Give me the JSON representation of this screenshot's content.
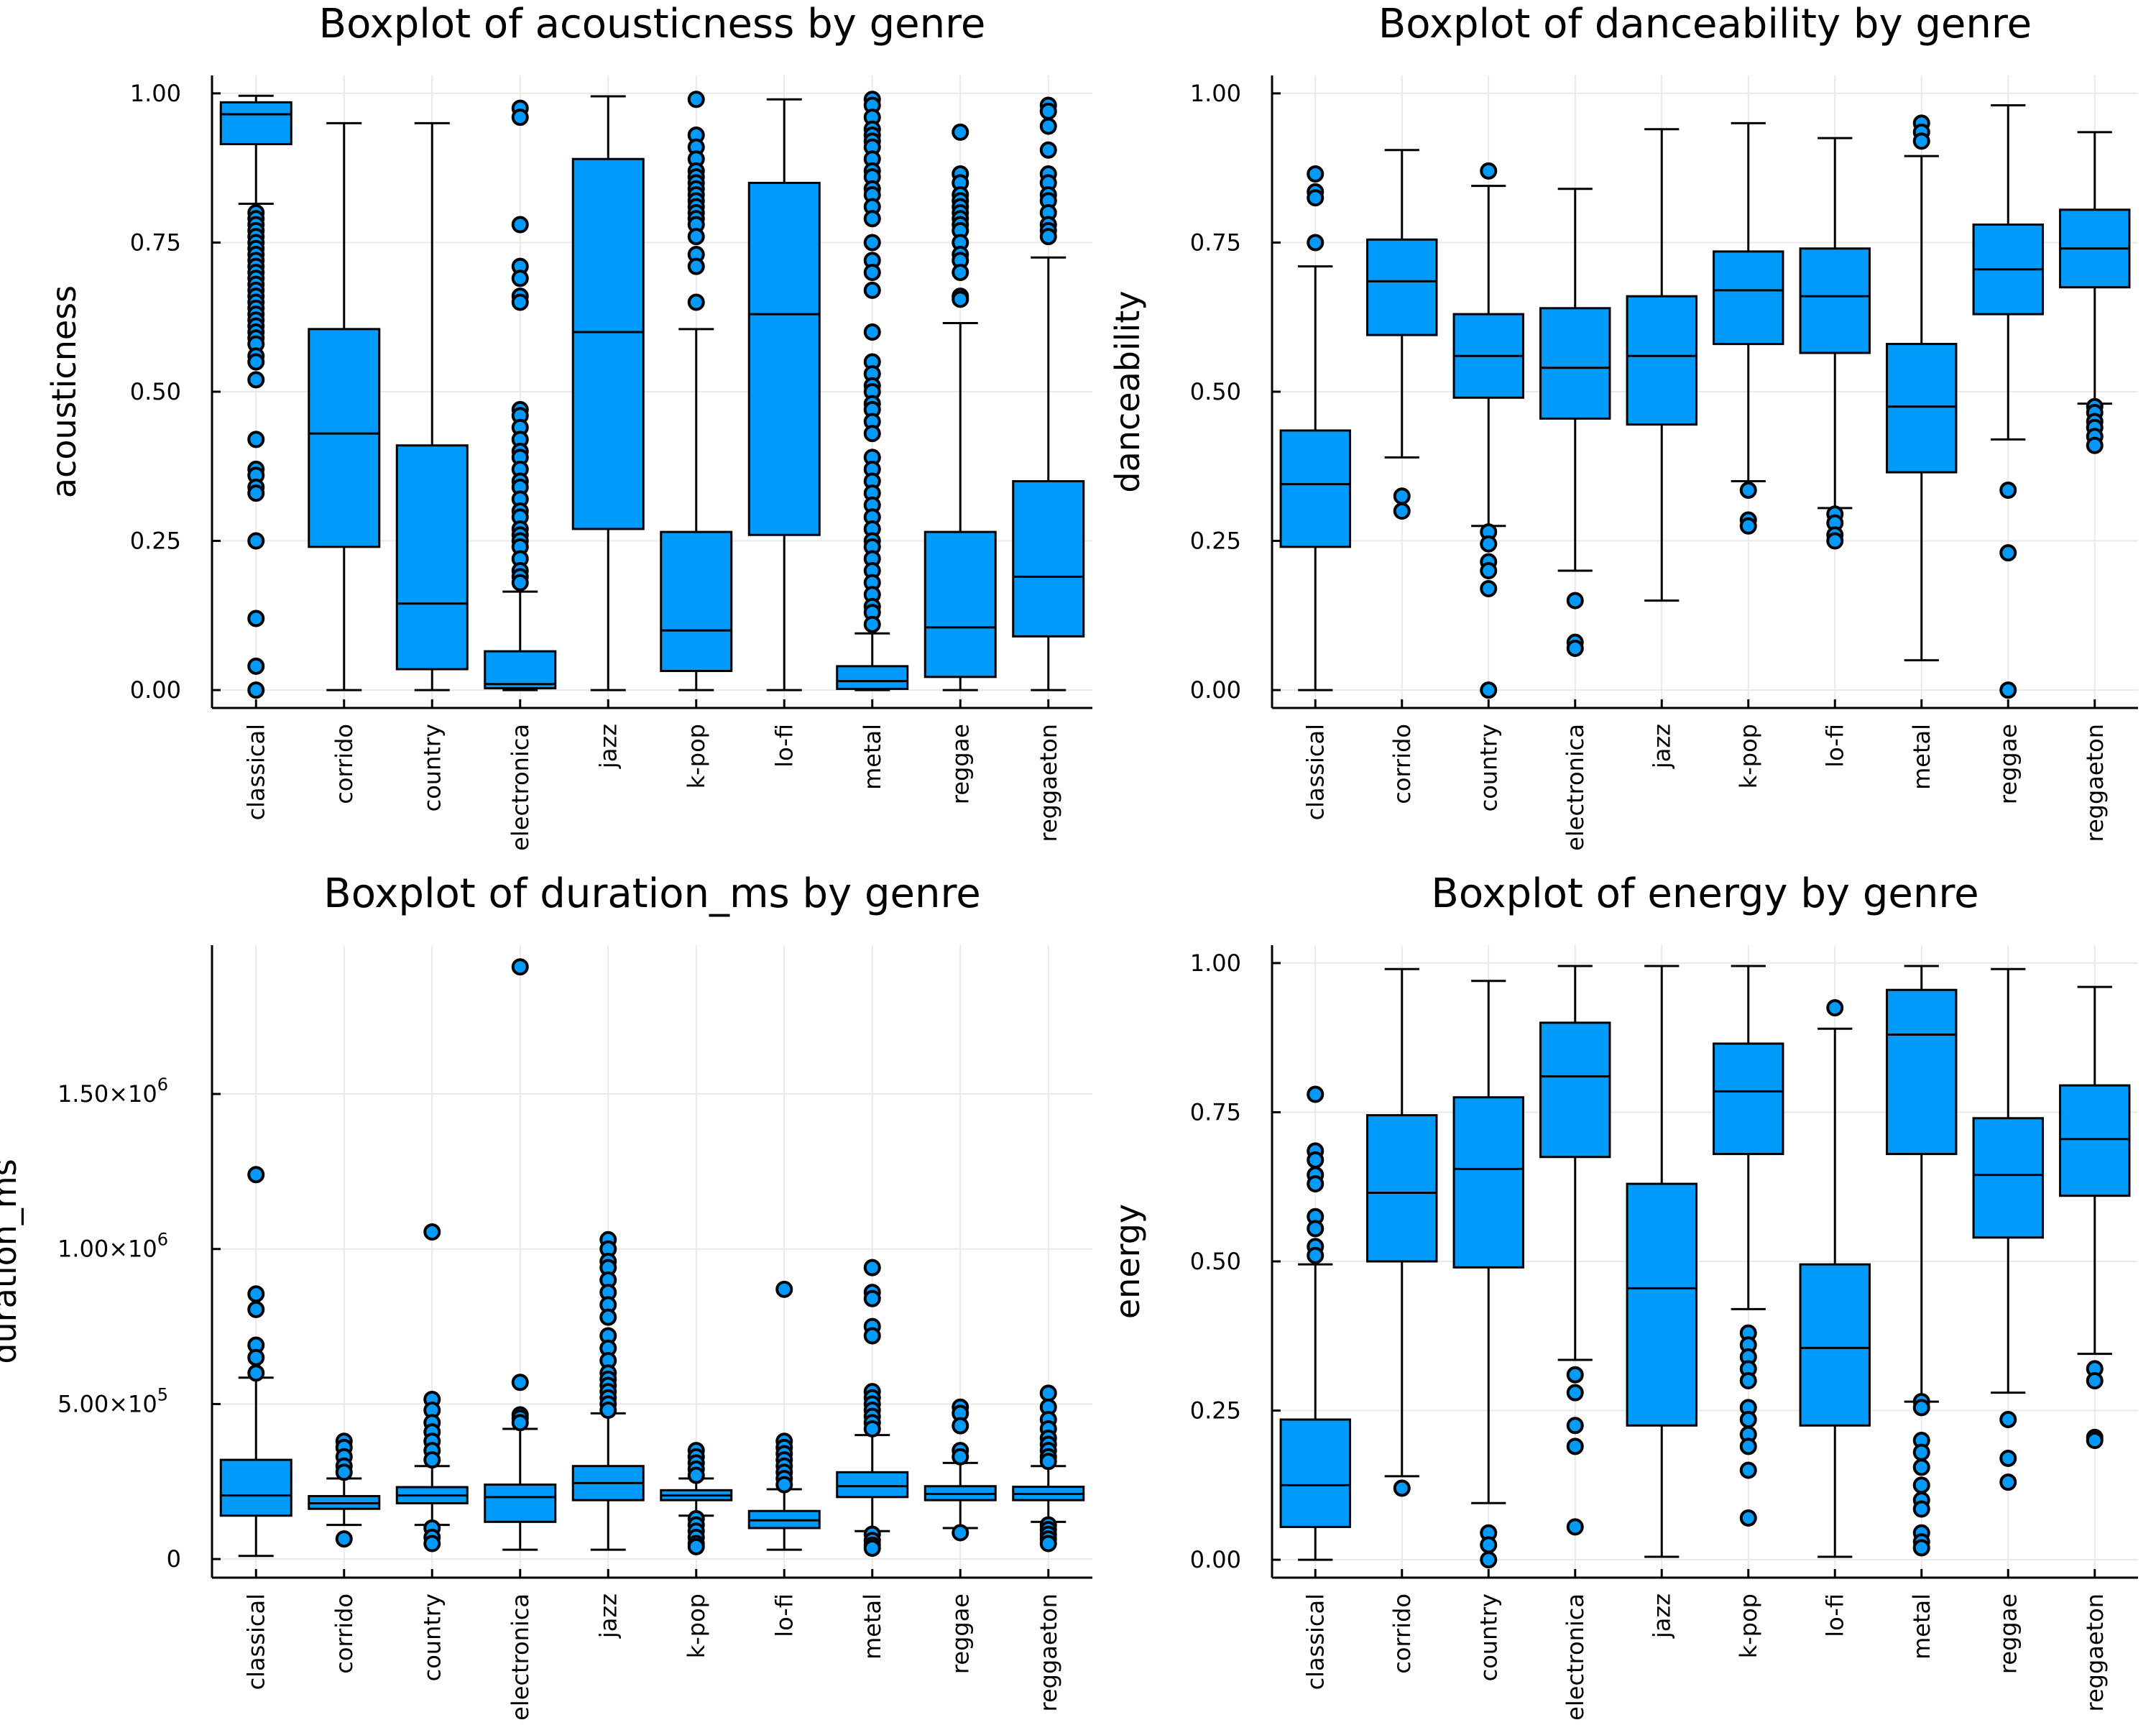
{
  "figure": {
    "fill_color": "#009AFA",
    "outline_color": "#000000"
  },
  "chart_data": [
    {
      "type": "box",
      "title": "Boxplot of acousticness by genre",
      "xlabel": "",
      "ylabel": "acousticness",
      "ylim": [
        -0.03,
        1.03
      ],
      "yticks": [
        0,
        0.25,
        0.5,
        0.75,
        1.0
      ],
      "ytick_labels": [
        "0.00",
        "0.25",
        "0.50",
        "0.75",
        "1.00"
      ],
      "categories": [
        "classical",
        "corrido",
        "country",
        "electronica",
        "jazz",
        "k-pop",
        "lo-fi",
        "metal",
        "reggae",
        "reggaeton"
      ],
      "boxes": [
        {
          "q1": 0.915,
          "median": 0.965,
          "q3": 0.985,
          "whisker_low": 0.815,
          "whisker_high": 0.996,
          "outliers": [
            0.8,
            0.79,
            0.78,
            0.77,
            0.76,
            0.75,
            0.74,
            0.73,
            0.72,
            0.71,
            0.7,
            0.69,
            0.68,
            0.67,
            0.66,
            0.65,
            0.64,
            0.63,
            0.62,
            0.61,
            0.6,
            0.59,
            0.58,
            0.56,
            0.55,
            0.52,
            0.42,
            0.37,
            0.36,
            0.34,
            0.33,
            0.25,
            0.12,
            0.04,
            0.0
          ]
        },
        {
          "q1": 0.24,
          "median": 0.43,
          "q3": 0.605,
          "whisker_low": 0.0,
          "whisker_high": 0.95,
          "outliers": []
        },
        {
          "q1": 0.035,
          "median": 0.145,
          "q3": 0.41,
          "whisker_low": 0.0,
          "whisker_high": 0.95,
          "outliers": []
        },
        {
          "q1": 0.003,
          "median": 0.01,
          "q3": 0.065,
          "whisker_low": 0.0,
          "whisker_high": 0.165,
          "outliers": [
            0.975,
            0.96,
            0.78,
            0.71,
            0.69,
            0.66,
            0.65,
            0.47,
            0.46,
            0.44,
            0.42,
            0.4,
            0.39,
            0.37,
            0.35,
            0.34,
            0.32,
            0.3,
            0.29,
            0.27,
            0.26,
            0.25,
            0.24,
            0.22,
            0.2,
            0.19,
            0.18
          ]
        },
        {
          "q1": 0.27,
          "median": 0.6,
          "q3": 0.89,
          "whisker_low": 0.0,
          "whisker_high": 0.995,
          "outliers": []
        },
        {
          "q1": 0.032,
          "median": 0.1,
          "q3": 0.265,
          "whisker_low": 0.0,
          "whisker_high": 0.605,
          "outliers": [
            0.99,
            0.93,
            0.91,
            0.89,
            0.87,
            0.86,
            0.85,
            0.84,
            0.83,
            0.82,
            0.81,
            0.8,
            0.79,
            0.78,
            0.76,
            0.73,
            0.71,
            0.65
          ]
        },
        {
          "q1": 0.26,
          "median": 0.63,
          "q3": 0.85,
          "whisker_low": 0.0,
          "whisker_high": 0.99,
          "outliers": []
        },
        {
          "q1": 0.002,
          "median": 0.015,
          "q3": 0.04,
          "whisker_low": 0.0,
          "whisker_high": 0.095,
          "outliers": [
            0.99,
            0.98,
            0.96,
            0.94,
            0.93,
            0.92,
            0.91,
            0.89,
            0.87,
            0.86,
            0.84,
            0.83,
            0.81,
            0.79,
            0.75,
            0.72,
            0.7,
            0.67,
            0.6,
            0.55,
            0.53,
            0.51,
            0.5,
            0.48,
            0.47,
            0.45,
            0.43,
            0.39,
            0.37,
            0.35,
            0.33,
            0.31,
            0.29,
            0.27,
            0.25,
            0.24,
            0.22,
            0.2,
            0.18,
            0.16,
            0.14,
            0.13,
            0.11
          ]
        },
        {
          "q1": 0.022,
          "median": 0.105,
          "q3": 0.265,
          "whisker_low": 0.0,
          "whisker_high": 0.615,
          "outliers": [
            0.935,
            0.865,
            0.85,
            0.83,
            0.82,
            0.81,
            0.8,
            0.79,
            0.78,
            0.77,
            0.75,
            0.73,
            0.72,
            0.7,
            0.66,
            0.655
          ]
        },
        {
          "q1": 0.09,
          "median": 0.19,
          "q3": 0.35,
          "whisker_low": 0.0,
          "whisker_high": 0.725,
          "outliers": [
            0.98,
            0.97,
            0.945,
            0.905,
            0.865,
            0.85,
            0.83,
            0.82,
            0.8,
            0.78,
            0.77,
            0.76
          ]
        }
      ]
    },
    {
      "type": "box",
      "title": "Boxplot of danceability by genre",
      "xlabel": "",
      "ylabel": "danceability",
      "ylim": [
        -0.03,
        1.03
      ],
      "yticks": [
        0,
        0.25,
        0.5,
        0.75,
        1.0
      ],
      "ytick_labels": [
        "0.00",
        "0.25",
        "0.50",
        "0.75",
        "1.00"
      ],
      "categories": [
        "classical",
        "corrido",
        "country",
        "electronica",
        "jazz",
        "k-pop",
        "lo-fi",
        "metal",
        "reggae",
        "reggaeton"
      ],
      "boxes": [
        {
          "q1": 0.24,
          "median": 0.345,
          "q3": 0.435,
          "whisker_low": 0.0,
          "whisker_high": 0.71,
          "outliers": [
            0.865,
            0.835,
            0.825,
            0.75
          ]
        },
        {
          "q1": 0.595,
          "median": 0.685,
          "q3": 0.755,
          "whisker_low": 0.39,
          "whisker_high": 0.905,
          "outliers": [
            0.325,
            0.3
          ]
        },
        {
          "q1": 0.49,
          "median": 0.56,
          "q3": 0.63,
          "whisker_low": 0.275,
          "whisker_high": 0.845,
          "outliers": [
            0.87,
            0.265,
            0.245,
            0.215,
            0.2,
            0.17,
            0.0
          ]
        },
        {
          "q1": 0.455,
          "median": 0.54,
          "q3": 0.64,
          "whisker_low": 0.2,
          "whisker_high": 0.84,
          "outliers": [
            0.15,
            0.08,
            0.07
          ]
        },
        {
          "q1": 0.445,
          "median": 0.56,
          "q3": 0.66,
          "whisker_low": 0.15,
          "whisker_high": 0.94,
          "outliers": []
        },
        {
          "q1": 0.58,
          "median": 0.67,
          "q3": 0.735,
          "whisker_low": 0.35,
          "whisker_high": 0.95,
          "outliers": [
            0.335,
            0.285,
            0.275
          ]
        },
        {
          "q1": 0.565,
          "median": 0.66,
          "q3": 0.74,
          "whisker_low": 0.305,
          "whisker_high": 0.925,
          "outliers": [
            0.295,
            0.28,
            0.26,
            0.25
          ]
        },
        {
          "q1": 0.365,
          "median": 0.475,
          "q3": 0.58,
          "whisker_low": 0.05,
          "whisker_high": 0.895,
          "outliers": [
            0.95,
            0.935,
            0.92
          ]
        },
        {
          "q1": 0.63,
          "median": 0.705,
          "q3": 0.78,
          "whisker_low": 0.42,
          "whisker_high": 0.98,
          "outliers": [
            0.335,
            0.23,
            0.0
          ]
        },
        {
          "q1": 0.675,
          "median": 0.74,
          "q3": 0.805,
          "whisker_low": 0.48,
          "whisker_high": 0.935,
          "outliers": [
            0.475,
            0.465,
            0.45,
            0.44,
            0.425,
            0.41
          ]
        }
      ]
    },
    {
      "type": "box",
      "title": "Boxplot of duration_ms by genre",
      "xlabel": "",
      "ylabel": "duration_ms",
      "ylim": [
        -60000,
        1980000
      ],
      "yticks": [
        0,
        500000,
        1000000,
        1500000
      ],
      "ytick_labels": [
        {
          "base": "0",
          "exp": ""
        },
        {
          "base": "5.00×10",
          "exp": "5"
        },
        {
          "base": "1.00×10",
          "exp": "6"
        },
        {
          "base": "1.50×10",
          "exp": "6"
        }
      ],
      "categories": [
        "classical",
        "corrido",
        "country",
        "electronica",
        "jazz",
        "k-pop",
        "lo-fi",
        "metal",
        "reggae",
        "reggaeton"
      ],
      "boxes": [
        {
          "q1": 140000,
          "median": 205000,
          "q3": 320000,
          "whisker_low": 10000,
          "whisker_high": 585000,
          "outliers": [
            1240000,
            855000,
            805000,
            690000,
            650000,
            600000
          ]
        },
        {
          "q1": 162000,
          "median": 180000,
          "q3": 203000,
          "whisker_low": 110000,
          "whisker_high": 260000,
          "outliers": [
            380000,
            360000,
            330000,
            300000,
            280000,
            65000
          ]
        },
        {
          "q1": 180000,
          "median": 205000,
          "q3": 232000,
          "whisker_low": 110000,
          "whisker_high": 300000,
          "outliers": [
            1055000,
            515000,
            480000,
            440000,
            410000,
            380000,
            350000,
            320000,
            100000,
            70000,
            50000
          ]
        },
        {
          "q1": 120000,
          "median": 200000,
          "q3": 240000,
          "whisker_low": 30000,
          "whisker_high": 420000,
          "outliers": [
            1910000,
            570000,
            465000,
            455000,
            440000
          ]
        },
        {
          "q1": 190000,
          "median": 245000,
          "q3": 300000,
          "whisker_low": 30000,
          "whisker_high": 470000,
          "outliers": [
            1030000,
            1000000,
            960000,
            940000,
            900000,
            860000,
            820000,
            780000,
            720000,
            680000,
            640000,
            600000,
            580000,
            560000,
            540000,
            520000,
            500000,
            480000
          ]
        },
        {
          "q1": 190000,
          "median": 205000,
          "q3": 222000,
          "whisker_low": 140000,
          "whisker_high": 260000,
          "outliers": [
            350000,
            330000,
            310000,
            290000,
            270000,
            130000,
            110000,
            90000,
            70000,
            50000,
            40000
          ]
        },
        {
          "q1": 100000,
          "median": 125000,
          "q3": 155000,
          "whisker_low": 30000,
          "whisker_high": 225000,
          "outliers": [
            870000,
            380000,
            360000,
            340000,
            320000,
            300000,
            280000,
            260000,
            240000
          ]
        },
        {
          "q1": 200000,
          "median": 235000,
          "q3": 280000,
          "whisker_low": 90000,
          "whisker_high": 400000,
          "outliers": [
            940000,
            860000,
            840000,
            750000,
            720000,
            540000,
            520000,
            500000,
            480000,
            460000,
            440000,
            420000,
            80000,
            60000,
            45000,
            35000
          ]
        },
        {
          "q1": 190000,
          "median": 210000,
          "q3": 235000,
          "whisker_low": 100000,
          "whisker_high": 310000,
          "outliers": [
            490000,
            470000,
            430000,
            350000,
            330000,
            85000
          ]
        },
        {
          "q1": 190000,
          "median": 210000,
          "q3": 233000,
          "whisker_low": 120000,
          "whisker_high": 300000,
          "outliers": [
            535000,
            490000,
            450000,
            420000,
            390000,
            370000,
            350000,
            330000,
            315000,
            110000,
            95000,
            80000,
            65000,
            50000
          ]
        }
      ]
    },
    {
      "type": "box",
      "title": "Boxplot of energy by genre",
      "xlabel": "",
      "ylabel": "energy",
      "ylim": [
        -0.03,
        1.03
      ],
      "yticks": [
        0,
        0.25,
        0.5,
        0.75,
        1.0
      ],
      "ytick_labels": [
        "0.00",
        "0.25",
        "0.50",
        "0.75",
        "1.00"
      ],
      "categories": [
        "classical",
        "corrido",
        "country",
        "electronica",
        "jazz",
        "k-pop",
        "lo-fi",
        "metal",
        "reggae",
        "reggaeton"
      ],
      "boxes": [
        {
          "q1": 0.055,
          "median": 0.125,
          "q3": 0.235,
          "whisker_low": 0.0,
          "whisker_high": 0.495,
          "outliers": [
            0.78,
            0.685,
            0.67,
            0.645,
            0.63,
            0.575,
            0.555,
            0.525,
            0.51
          ]
        },
        {
          "q1": 0.5,
          "median": 0.615,
          "q3": 0.745,
          "whisker_low": 0.14,
          "whisker_high": 0.99,
          "outliers": [
            0.12
          ]
        },
        {
          "q1": 0.49,
          "median": 0.655,
          "q3": 0.775,
          "whisker_low": 0.095,
          "whisker_high": 0.97,
          "outliers": [
            0.045,
            0.025,
            0.0
          ]
        },
        {
          "q1": 0.675,
          "median": 0.81,
          "q3": 0.9,
          "whisker_low": 0.335,
          "whisker_high": 0.995,
          "outliers": [
            0.31,
            0.28,
            0.225,
            0.19,
            0.055
          ]
        },
        {
          "q1": 0.225,
          "median": 0.455,
          "q3": 0.63,
          "whisker_low": 0.005,
          "whisker_high": 0.995,
          "outliers": []
        },
        {
          "q1": 0.68,
          "median": 0.785,
          "q3": 0.865,
          "whisker_low": 0.42,
          "whisker_high": 0.995,
          "outliers": [
            0.38,
            0.36,
            0.34,
            0.32,
            0.3,
            0.255,
            0.235,
            0.21,
            0.19,
            0.15,
            0.07
          ]
        },
        {
          "q1": 0.225,
          "median": 0.355,
          "q3": 0.495,
          "whisker_low": 0.005,
          "whisker_high": 0.89,
          "outliers": [
            0.925
          ]
        },
        {
          "q1": 0.68,
          "median": 0.88,
          "q3": 0.955,
          "whisker_low": 0.265,
          "whisker_high": 0.995,
          "outliers": [
            0.265,
            0.255,
            0.2,
            0.18,
            0.155,
            0.125,
            0.1,
            0.085,
            0.045,
            0.03,
            0.02
          ]
        },
        {
          "q1": 0.54,
          "median": 0.645,
          "q3": 0.74,
          "whisker_low": 0.28,
          "whisker_high": 0.99,
          "outliers": [
            0.235,
            0.17,
            0.13
          ]
        },
        {
          "q1": 0.61,
          "median": 0.705,
          "q3": 0.795,
          "whisker_low": 0.345,
          "whisker_high": 0.96,
          "outliers": [
            0.32,
            0.3,
            0.205,
            0.2
          ]
        }
      ]
    }
  ]
}
